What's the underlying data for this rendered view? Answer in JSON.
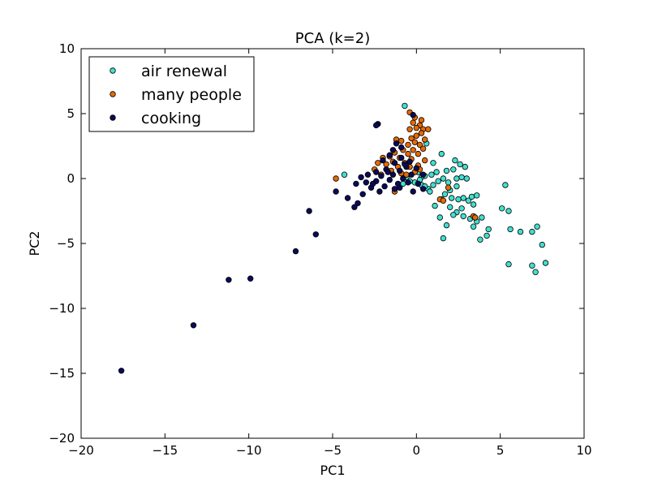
{
  "chart_data": {
    "type": "scatter",
    "title": "PCA (k=2)",
    "xlabel": "PC1",
    "ylabel": "PC2",
    "xlim": [
      -20,
      10
    ],
    "ylim": [
      -20,
      10
    ],
    "xticks": [
      -20,
      -15,
      -10,
      -5,
      0,
      5,
      10
    ],
    "yticks": [
      -20,
      -15,
      -10,
      -5,
      0,
      5,
      10
    ],
    "xtick_labels": [
      "−20",
      "−15",
      "−10",
      "−5",
      "0",
      "5",
      "10"
    ],
    "ytick_labels": [
      "−20",
      "−15",
      "−10",
      "−5",
      "0",
      "5",
      "10"
    ],
    "grid": false,
    "legend_position": "top-left",
    "series": [
      {
        "name": "air renewal",
        "color": "#40e0d0",
        "points": [
          [
            -0.7,
            5.6
          ],
          [
            0.6,
            2.7
          ],
          [
            1.5,
            1.9
          ],
          [
            2.3,
            1.4
          ],
          [
            2.6,
            1.1
          ],
          [
            2.9,
            0.9
          ],
          [
            2.2,
            0.7
          ],
          [
            1.8,
            0.6
          ],
          [
            1.2,
            0.5
          ],
          [
            1.0,
            1.2
          ],
          [
            0.9,
            0.3
          ],
          [
            0.5,
            0.2
          ],
          [
            0.3,
            0.1
          ],
          [
            0.2,
            -0.1
          ],
          [
            -0.1,
            -0.3
          ],
          [
            -0.4,
            -0.2
          ],
          [
            -0.6,
            0.1
          ],
          [
            -0.8,
            -0.4
          ],
          [
            0.3,
            -0.5
          ],
          [
            0.7,
            -0.8
          ],
          [
            1.0,
            -0.5
          ],
          [
            1.3,
            -0.2
          ],
          [
            1.6,
            0.0
          ],
          [
            1.9,
            -0.3
          ],
          [
            2.4,
            0.0
          ],
          [
            2.7,
            0.1
          ],
          [
            3.0,
            0.0
          ],
          [
            2.4,
            -0.6
          ],
          [
            2.0,
            -0.9
          ],
          [
            1.7,
            -1.2
          ],
          [
            2.1,
            -1.5
          ],
          [
            2.5,
            -1.6
          ],
          [
            2.8,
            -1.5
          ],
          [
            3.1,
            -1.7
          ],
          [
            3.3,
            -1.4
          ],
          [
            3.6,
            -1.3
          ],
          [
            3.4,
            -2.0
          ],
          [
            2.7,
            -2.3
          ],
          [
            2.4,
            -2.6
          ],
          [
            2.8,
            -2.9
          ],
          [
            3.2,
            -3.1
          ],
          [
            3.6,
            -3.3
          ],
          [
            3.9,
            -3.0
          ],
          [
            1.4,
            -3.0
          ],
          [
            1.8,
            -3.6
          ],
          [
            2.0,
            -2.2
          ],
          [
            1.1,
            -2.1
          ],
          [
            0.8,
            -1.0
          ],
          [
            0.5,
            -0.6
          ],
          [
            -4.3,
            0.3
          ],
          [
            3.4,
            -3.7
          ],
          [
            4.3,
            -3.9
          ],
          [
            4.2,
            -4.4
          ],
          [
            3.8,
            -4.7
          ],
          [
            1.6,
            -4.6
          ],
          [
            5.1,
            -2.3
          ],
          [
            5.3,
            -0.5
          ],
          [
            5.5,
            -2.5
          ],
          [
            5.6,
            -3.9
          ],
          [
            6.2,
            -4.1
          ],
          [
            6.9,
            -4.1
          ],
          [
            7.2,
            -3.7
          ],
          [
            7.5,
            -5.1
          ],
          [
            7.7,
            -6.5
          ],
          [
            6.9,
            -6.7
          ],
          [
            7.1,
            -7.2
          ],
          [
            5.5,
            -6.6
          ],
          [
            2.2,
            -2.8
          ],
          [
            1.5,
            -1.6
          ],
          [
            0.1,
            0.5
          ]
        ]
      },
      {
        "name": "many people",
        "color": "#e66a00",
        "points": [
          [
            -0.4,
            5.1
          ],
          [
            -0.1,
            4.7
          ],
          [
            0.3,
            4.5
          ],
          [
            -0.2,
            4.3
          ],
          [
            0.2,
            4.1
          ],
          [
            0.0,
            3.9
          ],
          [
            -0.4,
            3.8
          ],
          [
            0.4,
            3.8
          ],
          [
            0.7,
            3.8
          ],
          [
            0.3,
            3.5
          ],
          [
            0.0,
            3.3
          ],
          [
            -0.3,
            3.1
          ],
          [
            0.5,
            3.0
          ],
          [
            -0.1,
            2.8
          ],
          [
            -1.2,
            3.0
          ],
          [
            -0.9,
            2.9
          ],
          [
            0.2,
            2.6
          ],
          [
            -0.5,
            2.6
          ],
          [
            0.4,
            2.3
          ],
          [
            -0.2,
            2.2
          ],
          [
            -0.8,
            2.2
          ],
          [
            -1.3,
            2.0
          ],
          [
            -0.5,
            1.9
          ],
          [
            0.1,
            1.9
          ],
          [
            -1.6,
            1.7
          ],
          [
            -1.0,
            1.6
          ],
          [
            -2.0,
            1.6
          ],
          [
            -0.3,
            1.5
          ],
          [
            0.5,
            1.4
          ],
          [
            -1.4,
            1.3
          ],
          [
            -0.7,
            1.2
          ],
          [
            -2.3,
            1.2
          ],
          [
            -1.8,
            1.1
          ],
          [
            -1.1,
            0.9
          ],
          [
            -0.4,
            0.9
          ],
          [
            0.1,
            1.0
          ],
          [
            -2.5,
            0.7
          ],
          [
            -1.5,
            0.6
          ],
          [
            -0.9,
            0.4
          ],
          [
            -2.1,
            0.3
          ],
          [
            -4.8,
            0.0
          ],
          [
            -1.3,
            -1.0
          ],
          [
            1.4,
            -1.6
          ],
          [
            1.6,
            -1.7
          ],
          [
            1.9,
            -0.7
          ],
          [
            3.4,
            -2.9
          ],
          [
            3.5,
            -3.0
          ],
          [
            -0.6,
            0.3
          ],
          [
            0.2,
            0.7
          ],
          [
            -0.1,
            0.5
          ]
        ]
      },
      {
        "name": "cooking",
        "color": "#0a0a5a",
        "points": [
          [
            -2.3,
            4.2
          ],
          [
            -2.4,
            4.1
          ],
          [
            -1.2,
            2.7
          ],
          [
            -0.9,
            2.4
          ],
          [
            -0.2,
            4.9
          ],
          [
            -1.6,
            1.8
          ],
          [
            -0.9,
            1.6
          ],
          [
            -0.4,
            1.3
          ],
          [
            -2.0,
            1.4
          ],
          [
            -1.3,
            1.2
          ],
          [
            -0.6,
            0.9
          ],
          [
            0.0,
            0.8
          ],
          [
            -1.0,
            0.6
          ],
          [
            -1.8,
            0.7
          ],
          [
            -2.4,
            0.5
          ],
          [
            -0.3,
            0.3
          ],
          [
            0.4,
            0.3
          ],
          [
            -1.4,
            0.3
          ],
          [
            -2.1,
            0.2
          ],
          [
            -2.9,
            0.3
          ],
          [
            -3.3,
            0.1
          ],
          [
            -0.8,
            0.0
          ],
          [
            -1.6,
            -0.1
          ],
          [
            -2.4,
            -0.2
          ],
          [
            -3.0,
            -0.3
          ],
          [
            -1.1,
            -0.4
          ],
          [
            -0.5,
            -0.3
          ],
          [
            0.1,
            -0.4
          ],
          [
            -1.9,
            -0.6
          ],
          [
            -2.7,
            -0.7
          ],
          [
            -1.3,
            -0.8
          ],
          [
            -2.2,
            -1.0
          ],
          [
            -3.2,
            -1.2
          ],
          [
            -4.1,
            -1.5
          ],
          [
            -3.5,
            -1.9
          ],
          [
            -3.7,
            -2.2
          ],
          [
            -1.0,
            -0.7
          ],
          [
            -0.2,
            -1.0
          ],
          [
            0.4,
            -0.8
          ],
          [
            -4.8,
            -1.0
          ],
          [
            -2.6,
            -0.4
          ],
          [
            -1.7,
            0.5
          ],
          [
            -0.7,
            1.1
          ],
          [
            -1.4,
            2.2
          ],
          [
            -3.6,
            -0.4
          ],
          [
            -6.4,
            -2.5
          ],
          [
            -6.0,
            -4.3
          ],
          [
            -7.2,
            -5.6
          ],
          [
            -9.9,
            -7.7
          ],
          [
            -11.2,
            -7.8
          ],
          [
            -13.3,
            -11.3
          ],
          [
            -17.6,
            -14.8
          ]
        ]
      }
    ]
  }
}
